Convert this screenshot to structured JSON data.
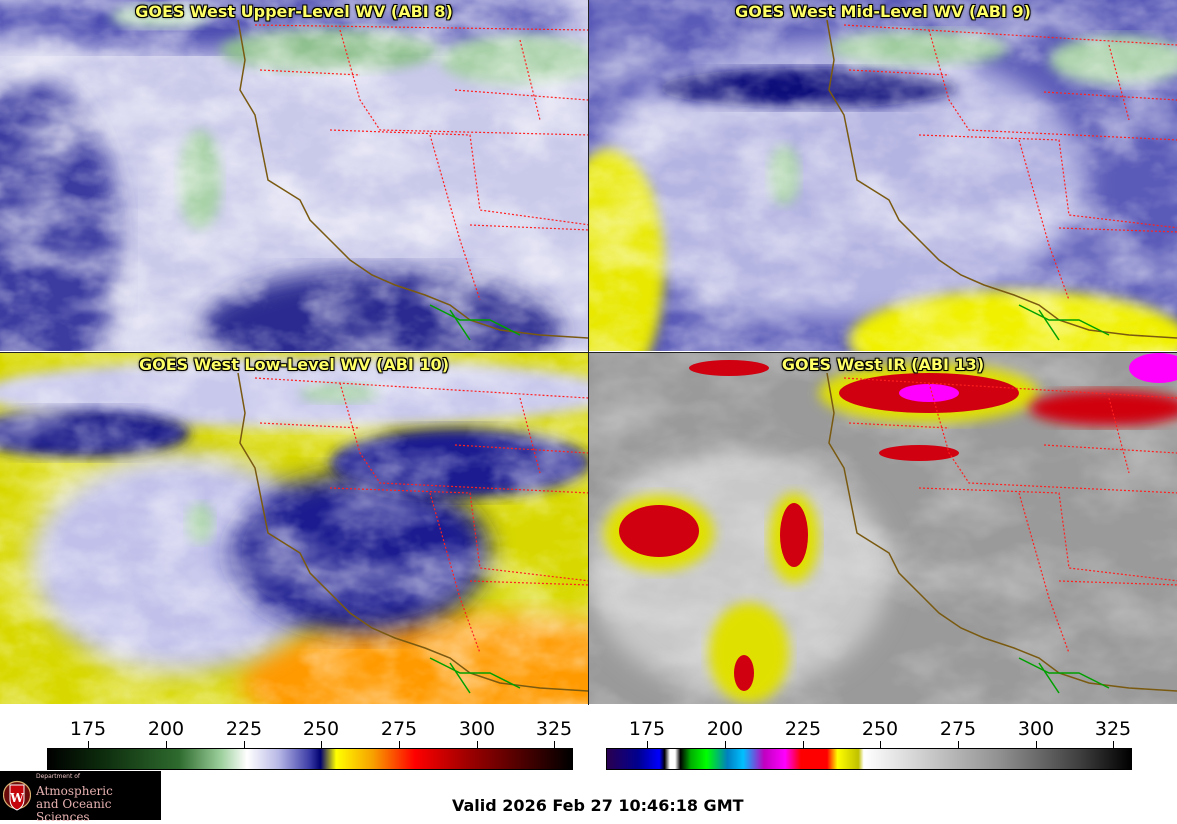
{
  "panels": [
    {
      "title": "GOES West Upper-Level WV (ABI 8)"
    },
    {
      "title": "GOES West Mid-Level WV (ABI 9)"
    },
    {
      "title": "GOES West Low-Level WV (ABI 10)"
    },
    {
      "title": "GOES West IR (ABI 13)"
    }
  ],
  "colorbar_wv": {
    "ticks": [
      "175",
      "200",
      "225",
      "250",
      "275",
      "300",
      "325"
    ]
  },
  "colorbar_ir": {
    "ticks": [
      "175",
      "200",
      "225",
      "250",
      "275",
      "300",
      "325"
    ]
  },
  "logo": {
    "line1": "Department of",
    "line2": "Atmospheric",
    "line3": "and Oceanic Sciences"
  },
  "valid_time": "Valid 2026 Feb 27 10:46:18 GMT",
  "colors": {
    "title_text": "#ffff66",
    "state_borders": "#ff2020",
    "coastline": "#7a5a10",
    "mexico_border": "#00a000"
  }
}
